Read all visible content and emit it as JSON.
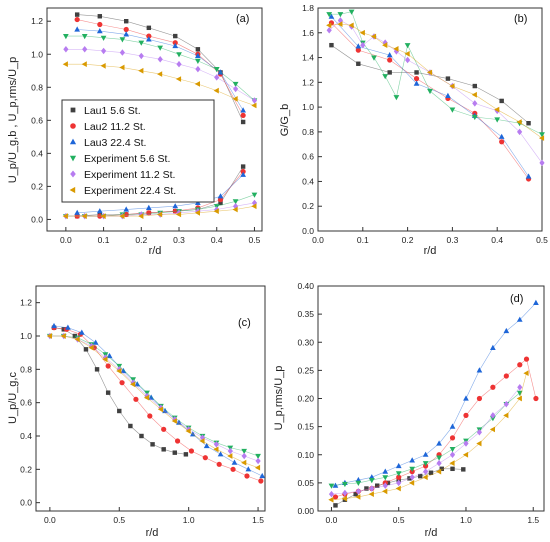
{
  "series_styles": [
    {
      "name": "Lau1 5.6 St.",
      "color": "#404040",
      "marker": "square"
    },
    {
      "name": "Lau2 11.2 St.",
      "color": "#ee3333",
      "marker": "circle"
    },
    {
      "name": "Lau3 22.4 St.",
      "color": "#1e66d8",
      "marker": "triangle-up"
    },
    {
      "name": "Experiment 5.6 St.",
      "color": "#22b060",
      "marker": "triangle-down"
    },
    {
      "name": "Experiment 11.2 St.",
      "color": "#b77cf0",
      "marker": "diamond"
    },
    {
      "name": "Experiment 22.4 St.",
      "color": "#d99a00",
      "marker": "triangle-left"
    }
  ],
  "chart_data": [
    {
      "panel": "(a)",
      "type": "scatter",
      "xlabel": "r/d",
      "ylabel": "U_p/U_g,b , U_p,rms/U_p",
      "xlim": [
        -0.05,
        0.52
      ],
      "ylim": [
        -0.07,
        1.28
      ],
      "xticks": [
        "0.0",
        "0.1",
        "0.2",
        "0.3",
        "0.4",
        "0.5"
      ],
      "xtick_values": [
        0.0,
        0.1,
        0.2,
        0.3,
        0.4,
        0.5
      ],
      "yticks": [
        "0.0",
        "0.2",
        "0.4",
        "0.6",
        "0.8",
        "1.0",
        "1.2"
      ],
      "ytick_values": [
        0.0,
        0.2,
        0.4,
        0.6,
        0.8,
        1.0,
        1.2
      ],
      "legend_position": "center-left",
      "series": [
        {
          "x": [
            0.03,
            0.09,
            0.16,
            0.22,
            0.29,
            0.35,
            0.41,
            0.47
          ],
          "y": [
            1.24,
            1.23,
            1.2,
            1.16,
            1.11,
            1.03,
            0.89,
            0.59
          ]
        },
        {
          "x": [
            0.03,
            0.09,
            0.16,
            0.22,
            0.29,
            0.35,
            0.41,
            0.47
          ],
          "y": [
            1.21,
            1.18,
            1.15,
            1.11,
            1.07,
            1.0,
            0.88,
            0.63
          ]
        },
        {
          "x": [
            0.03,
            0.09,
            0.16,
            0.22,
            0.29,
            0.35,
            0.41,
            0.47
          ],
          "y": [
            1.15,
            1.14,
            1.12,
            1.09,
            1.05,
            0.99,
            0.89,
            0.66
          ]
        },
        {
          "x": [
            0.0,
            0.05,
            0.1,
            0.15,
            0.2,
            0.25,
            0.3,
            0.35,
            0.4,
            0.45,
            0.5
          ],
          "y": [
            1.11,
            1.11,
            1.1,
            1.09,
            1.07,
            1.04,
            1.0,
            0.96,
            0.91,
            0.82,
            0.72
          ]
        },
        {
          "x": [
            0.0,
            0.05,
            0.1,
            0.15,
            0.2,
            0.25,
            0.3,
            0.35,
            0.4,
            0.45,
            0.5
          ],
          "y": [
            1.03,
            1.03,
            1.02,
            1.01,
            0.99,
            0.97,
            0.94,
            0.91,
            0.86,
            0.79,
            0.72
          ]
        },
        {
          "x": [
            0.0,
            0.05,
            0.1,
            0.15,
            0.2,
            0.25,
            0.3,
            0.35,
            0.4,
            0.45,
            0.5
          ],
          "y": [
            0.94,
            0.94,
            0.93,
            0.92,
            0.9,
            0.88,
            0.85,
            0.82,
            0.78,
            0.73,
            0.69
          ]
        }
      ],
      "series_lower": [
        {
          "x": [
            0.03,
            0.09,
            0.16,
            0.22,
            0.29,
            0.35,
            0.41,
            0.47
          ],
          "y": [
            0.02,
            0.03,
            0.03,
            0.04,
            0.05,
            0.06,
            0.1,
            0.32
          ]
        },
        {
          "x": [
            0.03,
            0.09,
            0.16,
            0.22,
            0.29,
            0.35,
            0.41,
            0.47
          ],
          "y": [
            0.02,
            0.02,
            0.03,
            0.04,
            0.05,
            0.07,
            0.12,
            0.29
          ]
        },
        {
          "x": [
            0.03,
            0.09,
            0.16,
            0.22,
            0.29,
            0.35,
            0.41,
            0.47
          ],
          "y": [
            0.04,
            0.05,
            0.06,
            0.07,
            0.08,
            0.1,
            0.14,
            0.27
          ]
        },
        {
          "x": [
            0.0,
            0.05,
            0.1,
            0.15,
            0.2,
            0.25,
            0.3,
            0.35,
            0.4,
            0.45,
            0.5
          ],
          "y": [
            0.02,
            0.02,
            0.02,
            0.03,
            0.03,
            0.04,
            0.05,
            0.06,
            0.08,
            0.11,
            0.15
          ]
        },
        {
          "x": [
            0.0,
            0.05,
            0.1,
            0.15,
            0.2,
            0.25,
            0.3,
            0.35,
            0.4,
            0.45,
            0.5
          ],
          "y": [
            0.02,
            0.02,
            0.02,
            0.02,
            0.03,
            0.03,
            0.04,
            0.05,
            0.06,
            0.08,
            0.1
          ]
        },
        {
          "x": [
            0.0,
            0.05,
            0.1,
            0.15,
            0.2,
            0.25,
            0.3,
            0.35,
            0.4,
            0.45,
            0.5
          ],
          "y": [
            0.02,
            0.02,
            0.02,
            0.02,
            0.02,
            0.03,
            0.03,
            0.04,
            0.05,
            0.06,
            0.08
          ]
        }
      ]
    },
    {
      "panel": "(b)",
      "type": "scatter",
      "xlabel": "r/d",
      "ylabel": "G/G_b",
      "xlim": [
        0.0,
        0.5
      ],
      "ylim": [
        0.0,
        1.8
      ],
      "xticks": [
        "0.0",
        "0.1",
        "0.2",
        "0.3",
        "0.4",
        "0.5"
      ],
      "xtick_values": [
        0.0,
        0.1,
        0.2,
        0.3,
        0.4,
        0.5
      ],
      "yticks": [
        "0.0",
        "0.2",
        "0.4",
        "0.6",
        "0.8",
        "1.0",
        "1.2",
        "1.4",
        "1.6",
        "1.8"
      ],
      "ytick_values": [
        0.0,
        0.2,
        0.4,
        0.6,
        0.8,
        1.0,
        1.2,
        1.4,
        1.6,
        1.8
      ],
      "series": [
        {
          "x": [
            0.03,
            0.09,
            0.16,
            0.22,
            0.29,
            0.35,
            0.41,
            0.47
          ],
          "y": [
            1.5,
            1.35,
            1.28,
            1.28,
            1.23,
            1.17,
            1.05,
            0.87
          ]
        },
        {
          "x": [
            0.03,
            0.09,
            0.16,
            0.22,
            0.29,
            0.35,
            0.41,
            0.47
          ],
          "y": [
            1.68,
            1.46,
            1.38,
            1.23,
            1.07,
            0.95,
            0.72,
            0.42
          ]
        },
        {
          "x": [
            0.03,
            0.09,
            0.16,
            0.22,
            0.29,
            0.35,
            0.41,
            0.47
          ],
          "y": [
            1.73,
            1.49,
            1.42,
            1.19,
            1.09,
            0.93,
            0.76,
            0.44
          ]
        },
        {
          "x": [
            0.025,
            0.05,
            0.075,
            0.1,
            0.125,
            0.15,
            0.175,
            0.2,
            0.25,
            0.3,
            0.35,
            0.4,
            0.45,
            0.5
          ],
          "y": [
            1.75,
            1.75,
            1.77,
            1.52,
            1.4,
            1.25,
            1.08,
            1.5,
            1.13,
            0.98,
            0.92,
            0.9,
            0.87,
            0.78
          ]
        },
        {
          "x": [
            0.025,
            0.05,
            0.075,
            0.1,
            0.125,
            0.15,
            0.175,
            0.2,
            0.25,
            0.3,
            0.35,
            0.4,
            0.45,
            0.5
          ],
          "y": [
            1.62,
            1.7,
            1.65,
            1.5,
            1.57,
            1.52,
            1.45,
            1.38,
            1.28,
            1.17,
            1.03,
            0.97,
            0.8,
            0.55
          ]
        },
        {
          "x": [
            0.025,
            0.05,
            0.075,
            0.1,
            0.125,
            0.15,
            0.175,
            0.2,
            0.25,
            0.3,
            0.35,
            0.4,
            0.45,
            0.5
          ],
          "y": [
            1.66,
            1.67,
            1.66,
            1.6,
            1.57,
            1.5,
            1.47,
            1.43,
            1.28,
            1.17,
            1.1,
            0.98,
            0.88,
            0.75
          ]
        }
      ]
    },
    {
      "panel": "(c)",
      "type": "scatter",
      "xlabel": "r/d",
      "ylabel": "U_p/U_g,c",
      "xlim": [
        -0.1,
        1.55
      ],
      "ylim": [
        -0.05,
        1.3
      ],
      "xticks": [
        "0.0",
        "0.5",
        "1.0",
        "1.5"
      ],
      "xtick_values": [
        0.0,
        0.5,
        1.0,
        1.5
      ],
      "yticks": [
        "0.0",
        "0.2",
        "0.4",
        "0.6",
        "0.8",
        "1.0",
        "1.2"
      ],
      "ytick_values": [
        0.0,
        0.2,
        0.4,
        0.6,
        0.8,
        1.0,
        1.2
      ],
      "series": [
        {
          "x": [
            0.03,
            0.1,
            0.18,
            0.26,
            0.34,
            0.42,
            0.5,
            0.58,
            0.66,
            0.74,
            0.82,
            0.9,
            0.98
          ],
          "y": [
            1.05,
            1.04,
            1.0,
            0.92,
            0.8,
            0.66,
            0.55,
            0.46,
            0.4,
            0.35,
            0.32,
            0.3,
            0.29
          ]
        },
        {
          "x": [
            0.03,
            0.12,
            0.22,
            0.32,
            0.42,
            0.52,
            0.62,
            0.72,
            0.82,
            0.92,
            1.02,
            1.12,
            1.22,
            1.32,
            1.42,
            1.52
          ],
          "y": [
            1.05,
            1.04,
            1.01,
            0.93,
            0.82,
            0.72,
            0.62,
            0.52,
            0.44,
            0.37,
            0.31,
            0.27,
            0.23,
            0.2,
            0.16,
            0.13
          ]
        },
        {
          "x": [
            0.03,
            0.13,
            0.23,
            0.33,
            0.43,
            0.53,
            0.63,
            0.73,
            0.83,
            0.93,
            1.03,
            1.13,
            1.23,
            1.33,
            1.43,
            1.53
          ],
          "y": [
            1.06,
            1.05,
            1.02,
            0.96,
            0.88,
            0.79,
            0.71,
            0.63,
            0.55,
            0.48,
            0.41,
            0.34,
            0.29,
            0.24,
            0.2,
            0.16
          ]
        },
        {
          "x": [
            0.0,
            0.1,
            0.2,
            0.3,
            0.4,
            0.5,
            0.6,
            0.7,
            0.8,
            0.9,
            1.0,
            1.1,
            1.2,
            1.3,
            1.4,
            1.5
          ],
          "y": [
            1.0,
            1.0,
            0.99,
            0.95,
            0.89,
            0.82,
            0.74,
            0.66,
            0.58,
            0.51,
            0.45,
            0.4,
            0.36,
            0.33,
            0.31,
            0.28
          ]
        },
        {
          "x": [
            0.0,
            0.1,
            0.2,
            0.3,
            0.4,
            0.5,
            0.6,
            0.7,
            0.8,
            0.9,
            1.0,
            1.1,
            1.2,
            1.3,
            1.4,
            1.5
          ],
          "y": [
            1.0,
            1.0,
            0.98,
            0.94,
            0.87,
            0.8,
            0.72,
            0.64,
            0.57,
            0.5,
            0.44,
            0.39,
            0.35,
            0.31,
            0.28,
            0.25
          ]
        },
        {
          "x": [
            0.0,
            0.1,
            0.2,
            0.3,
            0.4,
            0.5,
            0.6,
            0.7,
            0.8,
            0.9,
            1.0,
            1.1,
            1.2,
            1.3,
            1.4,
            1.5
          ],
          "y": [
            1.0,
            1.0,
            0.98,
            0.93,
            0.86,
            0.79,
            0.71,
            0.63,
            0.56,
            0.49,
            0.43,
            0.37,
            0.32,
            0.28,
            0.24,
            0.21
          ]
        }
      ]
    },
    {
      "panel": "(d)",
      "type": "scatter",
      "xlabel": "r/d",
      "ylabel": "U_p,rms/U_p",
      "xlim": [
        -0.1,
        1.58
      ],
      "ylim": [
        0.0,
        0.4
      ],
      "xticks": [
        "0.0",
        "0.5",
        "1.0",
        "1.5"
      ],
      "xtick_values": [
        0.0,
        0.5,
        1.0,
        1.5
      ],
      "yticks": [
        "0.00",
        "0.05",
        "0.10",
        "0.15",
        "0.20",
        "0.25",
        "0.30",
        "0.35",
        "0.40"
      ],
      "ytick_values": [
        0.0,
        0.05,
        0.1,
        0.15,
        0.2,
        0.25,
        0.3,
        0.35,
        0.4
      ],
      "series": [
        {
          "x": [
            0.03,
            0.1,
            0.18,
            0.26,
            0.34,
            0.42,
            0.5,
            0.58,
            0.66,
            0.74,
            0.82,
            0.9,
            0.98
          ],
          "y": [
            0.01,
            0.02,
            0.03,
            0.04,
            0.045,
            0.05,
            0.055,
            0.058,
            0.062,
            0.068,
            0.075,
            0.075,
            0.074
          ]
        },
        {
          "x": [
            0.03,
            0.1,
            0.2,
            0.3,
            0.4,
            0.5,
            0.6,
            0.7,
            0.8,
            0.9,
            1.0,
            1.1,
            1.2,
            1.3,
            1.4,
            1.45,
            1.52
          ],
          "y": [
            0.025,
            0.03,
            0.035,
            0.04,
            0.05,
            0.06,
            0.07,
            0.08,
            0.1,
            0.13,
            0.17,
            0.2,
            0.22,
            0.24,
            0.26,
            0.27,
            0.2
          ]
        },
        {
          "x": [
            0.03,
            0.1,
            0.2,
            0.3,
            0.4,
            0.5,
            0.6,
            0.7,
            0.8,
            0.9,
            1.0,
            1.1,
            1.2,
            1.3,
            1.4,
            1.52
          ],
          "y": [
            0.045,
            0.05,
            0.055,
            0.06,
            0.07,
            0.08,
            0.09,
            0.1,
            0.12,
            0.15,
            0.2,
            0.25,
            0.29,
            0.32,
            0.34,
            0.37
          ]
        },
        {
          "x": [
            0.0,
            0.1,
            0.2,
            0.3,
            0.4,
            0.5,
            0.6,
            0.7,
            0.8,
            0.9,
            1.0,
            1.1,
            1.2,
            1.3,
            1.4
          ],
          "y": [
            0.045,
            0.048,
            0.05,
            0.055,
            0.06,
            0.067,
            0.075,
            0.085,
            0.095,
            0.11,
            0.125,
            0.145,
            0.165,
            0.19,
            0.21
          ]
        },
        {
          "x": [
            0.0,
            0.1,
            0.2,
            0.3,
            0.4,
            0.5,
            0.6,
            0.7,
            0.8,
            0.9,
            1.0,
            1.1,
            1.2,
            1.3,
            1.4
          ],
          "y": [
            0.03,
            0.032,
            0.035,
            0.04,
            0.045,
            0.05,
            0.06,
            0.07,
            0.085,
            0.1,
            0.12,
            0.14,
            0.17,
            0.19,
            0.22
          ]
        },
        {
          "x": [
            0.0,
            0.1,
            0.2,
            0.3,
            0.4,
            0.5,
            0.6,
            0.7,
            0.8,
            0.9,
            1.0,
            1.1,
            1.2,
            1.3,
            1.4,
            1.45
          ],
          "y": [
            0.02,
            0.022,
            0.025,
            0.03,
            0.035,
            0.04,
            0.05,
            0.06,
            0.07,
            0.085,
            0.1,
            0.12,
            0.145,
            0.17,
            0.2,
            0.245
          ]
        }
      ]
    }
  ]
}
